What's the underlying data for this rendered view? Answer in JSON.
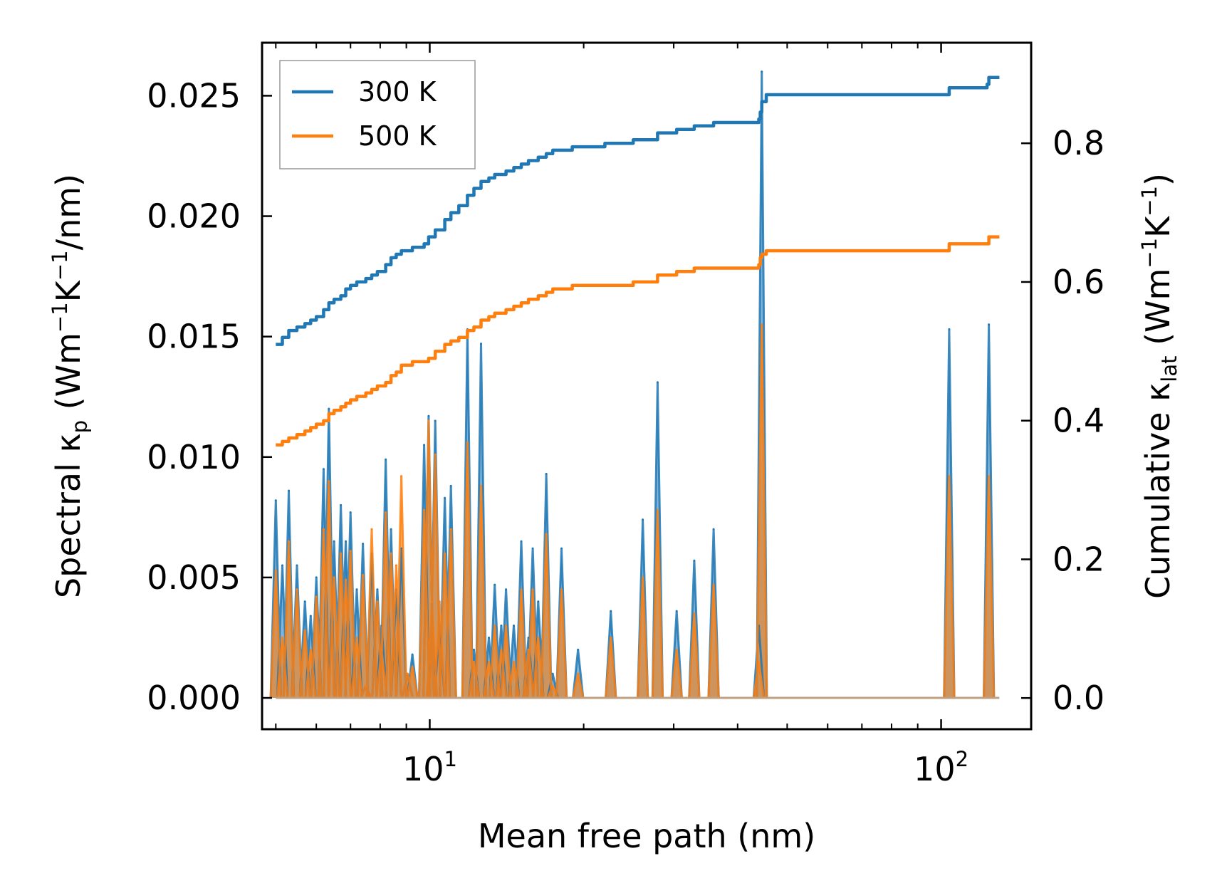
{
  "chart_data": {
    "type": "line",
    "title": "",
    "xlabel": "Mean free path (nm)",
    "xscale": "log",
    "xlim": [
      4.7,
      150
    ],
    "x_ticks": [
      {
        "value": 10,
        "base": "10",
        "exp": "1"
      },
      {
        "value": 100,
        "base": "10",
        "exp": "2"
      }
    ],
    "left_axis": {
      "label_parts": {
        "main": "Spectral κ",
        "sub": "p",
        "unit_open": " (Wm",
        "e1": "−1",
        "k": "K",
        "e2": "−1",
        "unit_close": "/nm)"
      },
      "ylim": [
        -0.0013,
        0.0272
      ],
      "ticks": [
        0,
        0.005,
        0.01,
        0.015,
        0.02,
        0.025
      ],
      "tick_labels": [
        "0.000",
        "0.005",
        "0.010",
        "0.015",
        "0.020",
        "0.025"
      ]
    },
    "right_axis": {
      "label_parts": {
        "main": "Cumulative κ",
        "sub": "lat",
        "unit_open": " (Wm",
        "e1": "−1",
        "k": "K",
        "e2": "−1",
        "unit_close": ")"
      },
      "ylim": [
        -0.045,
        0.945
      ],
      "ticks": [
        0,
        0.2,
        0.4,
        0.6,
        0.8
      ],
      "tick_labels": [
        "0.0",
        "0.2",
        "0.4",
        "0.6",
        "0.8"
      ]
    },
    "legend": {
      "position": "top-left",
      "entries": [
        "300 K",
        "500 K"
      ]
    },
    "colors": {
      "300 K": "#1f77b4",
      "500 K": "#ff7f0e",
      "fill_300": "#1f77b4",
      "fill_500": "#ff7f0e"
    },
    "spectral_series": [
      {
        "name": "300 K",
        "axis": "left",
        "peaks": [
          [
            5.0,
            0.0082
          ],
          [
            5.15,
            0.0055
          ],
          [
            5.3,
            0.0086
          ],
          [
            5.5,
            0.0055
          ],
          [
            5.7,
            0.004
          ],
          [
            5.85,
            0.0034
          ],
          [
            6.0,
            0.005
          ],
          [
            6.2,
            0.0095
          ],
          [
            6.35,
            0.012
          ],
          [
            6.5,
            0.0065
          ],
          [
            6.7,
            0.008
          ],
          [
            6.85,
            0.0065
          ],
          [
            7.0,
            0.0077
          ],
          [
            7.2,
            0.0045
          ],
          [
            7.4,
            0.0064
          ],
          [
            7.5,
            0.0005
          ],
          [
            7.7,
            0.006
          ],
          [
            7.9,
            0.0045
          ],
          [
            8.05,
            0.003
          ],
          [
            8.2,
            0.0099
          ],
          [
            8.4,
            0.007
          ],
          [
            8.6,
            0.0045
          ],
          [
            8.8,
            0.0062
          ],
          [
            9.05,
            0.001
          ],
          [
            9.25,
            0.0018
          ],
          [
            9.75,
            0.0105
          ],
          [
            9.95,
            0.0117
          ],
          [
            10.1,
            0.003
          ],
          [
            10.25,
            0.0115
          ],
          [
            10.45,
            0.003
          ],
          [
            10.7,
            0.0083
          ],
          [
            11.0,
            0.0088
          ],
          [
            11.85,
            0.0153
          ],
          [
            12.2,
            0.002
          ],
          [
            12.6,
            0.0147
          ],
          [
            13.05,
            0.0025
          ],
          [
            13.4,
            0.0047
          ],
          [
            13.8,
            0.003
          ],
          [
            14.1,
            0.0045
          ],
          [
            14.6,
            0.003
          ],
          [
            15.1,
            0.0065
          ],
          [
            15.6,
            0.0025
          ],
          [
            15.9,
            0.0062
          ],
          [
            16.3,
            0.004
          ],
          [
            16.9,
            0.0093
          ],
          [
            17.4,
            0.001
          ],
          [
            18.1,
            0.0062
          ],
          [
            19.5,
            0.002
          ],
          [
            22.6,
            0.0036
          ],
          [
            26.1,
            0.0074
          ],
          [
            27.9,
            0.0131
          ],
          [
            30.4,
            0.0036
          ],
          [
            32.9,
            0.0057
          ],
          [
            35.9,
            0.007
          ],
          [
            44.0,
            0.003
          ],
          [
            44.6,
            0.026
          ],
          [
            103.7,
            0.0153
          ],
          [
            124.0,
            0.0155
          ]
        ]
      },
      {
        "name": "500 K",
        "axis": "left",
        "peaks": [
          [
            5.0,
            0.0053
          ],
          [
            5.15,
            0.0025
          ],
          [
            5.3,
            0.0065
          ],
          [
            5.5,
            0.0045
          ],
          [
            5.7,
            0.0028
          ],
          [
            5.85,
            0.002
          ],
          [
            6.0,
            0.0042
          ],
          [
            6.2,
            0.007
          ],
          [
            6.35,
            0.009
          ],
          [
            6.5,
            0.005
          ],
          [
            6.7,
            0.006
          ],
          [
            6.85,
            0.0049
          ],
          [
            7.0,
            0.0061
          ],
          [
            7.2,
            0.0025
          ],
          [
            7.4,
            0.0051
          ],
          [
            7.5,
            0.0005
          ],
          [
            7.7,
            0.007
          ],
          [
            7.9,
            0.004
          ],
          [
            8.05,
            0.002
          ],
          [
            8.2,
            0.0077
          ],
          [
            8.4,
            0.006
          ],
          [
            8.6,
            0.0055
          ],
          [
            8.8,
            0.0092
          ],
          [
            9.05,
            0.001
          ],
          [
            9.25,
            0.0013
          ],
          [
            9.75,
            0.0078
          ],
          [
            9.95,
            0.0115
          ],
          [
            10.1,
            0.004
          ],
          [
            10.25,
            0.0101
          ],
          [
            10.45,
            0.004
          ],
          [
            10.7,
            0.006
          ],
          [
            11.0,
            0.007
          ],
          [
            11.85,
            0.0106
          ],
          [
            12.2,
            0.0015
          ],
          [
            12.6,
            0.0088
          ],
          [
            13.05,
            0.0015
          ],
          [
            13.4,
            0.003
          ],
          [
            13.8,
            0.002
          ],
          [
            14.1,
            0.003
          ],
          [
            14.6,
            0.0015
          ],
          [
            15.1,
            0.0045
          ],
          [
            15.6,
            0.002
          ],
          [
            15.9,
            0.0045
          ],
          [
            16.3,
            0.0025
          ],
          [
            16.9,
            0.0068
          ],
          [
            17.4,
            0.0005
          ],
          [
            18.1,
            0.0045
          ],
          [
            19.5,
            0.001
          ],
          [
            22.6,
            0.0025
          ],
          [
            26.1,
            0.005
          ],
          [
            27.9,
            0.0078
          ],
          [
            30.4,
            0.002
          ],
          [
            32.9,
            0.0035
          ],
          [
            35.9,
            0.0047
          ],
          [
            44.0,
            0.0015
          ],
          [
            44.6,
            0.0155
          ],
          [
            103.7,
            0.0092
          ],
          [
            124.0,
            0.0092
          ]
        ]
      }
    ],
    "cumulative_series": [
      {
        "name": "300 K",
        "axis": "right",
        "points": [
          [
            5.0,
            0.51
          ],
          [
            5.15,
            0.52
          ],
          [
            5.3,
            0.53
          ],
          [
            5.5,
            0.535
          ],
          [
            5.7,
            0.54
          ],
          [
            5.85,
            0.545
          ],
          [
            6.0,
            0.55
          ],
          [
            6.2,
            0.56
          ],
          [
            6.35,
            0.57
          ],
          [
            6.5,
            0.575
          ],
          [
            6.7,
            0.58
          ],
          [
            6.85,
            0.59
          ],
          [
            7.0,
            0.595
          ],
          [
            7.2,
            0.6
          ],
          [
            7.5,
            0.605
          ],
          [
            7.7,
            0.61
          ],
          [
            7.9,
            0.615
          ],
          [
            8.2,
            0.625
          ],
          [
            8.4,
            0.635
          ],
          [
            8.6,
            0.64
          ],
          [
            8.8,
            0.645
          ],
          [
            9.25,
            0.65
          ],
          [
            9.75,
            0.655
          ],
          [
            9.95,
            0.665
          ],
          [
            10.25,
            0.675
          ],
          [
            10.7,
            0.69
          ],
          [
            11.0,
            0.7
          ],
          [
            11.4,
            0.71
          ],
          [
            11.85,
            0.725
          ],
          [
            12.2,
            0.735
          ],
          [
            12.6,
            0.745
          ],
          [
            13.05,
            0.75
          ],
          [
            13.4,
            0.755
          ],
          [
            14.1,
            0.76
          ],
          [
            14.6,
            0.765
          ],
          [
            15.1,
            0.77
          ],
          [
            15.6,
            0.775
          ],
          [
            16.3,
            0.78
          ],
          [
            16.9,
            0.785
          ],
          [
            17.4,
            0.79
          ],
          [
            19.0,
            0.795
          ],
          [
            22.0,
            0.8
          ],
          [
            25.0,
            0.805
          ],
          [
            27.9,
            0.815
          ],
          [
            30.4,
            0.82
          ],
          [
            32.9,
            0.825
          ],
          [
            35.9,
            0.83
          ],
          [
            44.0,
            0.835
          ],
          [
            44.3,
            0.845
          ],
          [
            44.6,
            0.86
          ],
          [
            45.5,
            0.87
          ],
          [
            102.0,
            0.87
          ],
          [
            103.7,
            0.88
          ],
          [
            123.0,
            0.885
          ],
          [
            124.0,
            0.895
          ],
          [
            130.0,
            0.895
          ]
        ]
      },
      {
        "name": "500 K",
        "axis": "right",
        "points": [
          [
            5.0,
            0.365
          ],
          [
            5.15,
            0.37
          ],
          [
            5.3,
            0.375
          ],
          [
            5.5,
            0.38
          ],
          [
            5.7,
            0.385
          ],
          [
            5.85,
            0.39
          ],
          [
            6.0,
            0.395
          ],
          [
            6.2,
            0.4
          ],
          [
            6.35,
            0.41
          ],
          [
            6.5,
            0.415
          ],
          [
            6.7,
            0.42
          ],
          [
            6.85,
            0.425
          ],
          [
            7.0,
            0.43
          ],
          [
            7.2,
            0.435
          ],
          [
            7.5,
            0.44
          ],
          [
            7.7,
            0.445
          ],
          [
            7.9,
            0.45
          ],
          [
            8.2,
            0.455
          ],
          [
            8.4,
            0.465
          ],
          [
            8.6,
            0.47
          ],
          [
            8.8,
            0.48
          ],
          [
            9.25,
            0.485
          ],
          [
            9.75,
            0.485
          ],
          [
            9.95,
            0.49
          ],
          [
            10.25,
            0.5
          ],
          [
            10.7,
            0.51
          ],
          [
            11.0,
            0.515
          ],
          [
            11.4,
            0.52
          ],
          [
            11.85,
            0.53
          ],
          [
            12.2,
            0.535
          ],
          [
            12.6,
            0.545
          ],
          [
            13.05,
            0.55
          ],
          [
            13.4,
            0.555
          ],
          [
            14.1,
            0.56
          ],
          [
            14.6,
            0.565
          ],
          [
            15.1,
            0.57
          ],
          [
            15.6,
            0.575
          ],
          [
            16.3,
            0.58
          ],
          [
            16.9,
            0.585
          ],
          [
            17.4,
            0.59
          ],
          [
            19.0,
            0.595
          ],
          [
            22.0,
            0.595
          ],
          [
            25.0,
            0.6
          ],
          [
            27.9,
            0.61
          ],
          [
            30.4,
            0.615
          ],
          [
            32.9,
            0.62
          ],
          [
            35.9,
            0.62
          ],
          [
            44.0,
            0.625
          ],
          [
            44.3,
            0.635
          ],
          [
            44.6,
            0.64
          ],
          [
            45.5,
            0.645
          ],
          [
            102.0,
            0.645
          ],
          [
            103.7,
            0.655
          ],
          [
            123.0,
            0.655
          ],
          [
            124.0,
            0.665
          ],
          [
            130.0,
            0.665
          ]
        ]
      }
    ]
  }
}
